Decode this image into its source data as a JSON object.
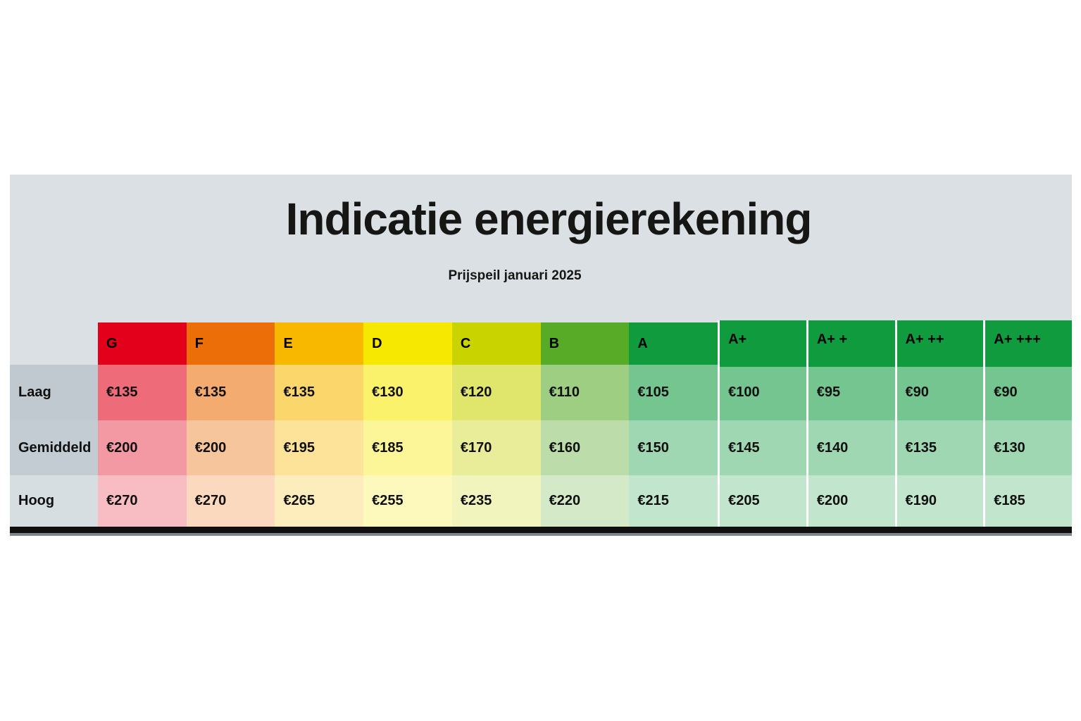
{
  "panel": {
    "background": "#DAE0E3",
    "title": "Indicatie energierekening",
    "subtitle": "Prijspeil januari 2025"
  },
  "table": {
    "columns": [
      {
        "label": "G",
        "color": "#E2001A"
      },
      {
        "label": "F",
        "color": "#EC6E08"
      },
      {
        "label": "E",
        "color": "#F8B800"
      },
      {
        "label": "D",
        "color": "#F7E800"
      },
      {
        "label": "C",
        "color": "#C9D300"
      },
      {
        "label": "B",
        "color": "#57AB27"
      },
      {
        "label": "A",
        "color": "#0F9B3E"
      },
      {
        "label": "A+",
        "color": "#0F9B3E"
      },
      {
        "label": "A+ +",
        "color": "#0F9B3E"
      },
      {
        "label": "A+ ++",
        "color": "#0F9B3E"
      },
      {
        "label": "A+ +++",
        "color": "#0F9B3E"
      }
    ],
    "rows": [
      {
        "label": "Laag",
        "label_bg": "#BFC9CF",
        "tint": 0.58,
        "values": [
          "€135",
          "€135",
          "€135",
          "€130",
          "€120",
          "€110",
          "€105",
          "€100",
          "€95",
          "€90",
          "€90"
        ]
      },
      {
        "label": "Gemiddeld",
        "label_bg": "#C2CCD2",
        "tint": 0.4,
        "values": [
          "€200",
          "€200",
          "€195",
          "€185",
          "€170",
          "€160",
          "€150",
          "€145",
          "€140",
          "€135",
          "€130"
        ]
      },
      {
        "label": "Hoog",
        "label_bg": "#D6DEE2",
        "tint": 0.26,
        "values": [
          "€270",
          "€270",
          "€265",
          "€255",
          "€235",
          "€220",
          "€215",
          "€205",
          "€200",
          "€190",
          "€185"
        ]
      }
    ],
    "footer_bar_color": "#0F0F0F",
    "footer_shadow_color": "#7E868B"
  },
  "chart_data": {
    "type": "table",
    "title": "Indicatie energierekening",
    "subtitle": "Prijspeil januari 2025",
    "currency": "EUR",
    "categories": [
      "G",
      "F",
      "E",
      "D",
      "C",
      "B",
      "A",
      "A+",
      "A+ +",
      "A+ ++",
      "A+ +++"
    ],
    "series": [
      {
        "name": "Laag",
        "values": [
          135,
          135,
          135,
          130,
          120,
          110,
          105,
          100,
          95,
          90,
          90
        ]
      },
      {
        "name": "Gemiddeld",
        "values": [
          200,
          200,
          195,
          185,
          170,
          160,
          150,
          145,
          140,
          135,
          130
        ]
      },
      {
        "name": "Hoog",
        "values": [
          270,
          270,
          265,
          255,
          235,
          220,
          215,
          205,
          200,
          190,
          185
        ]
      }
    ]
  }
}
